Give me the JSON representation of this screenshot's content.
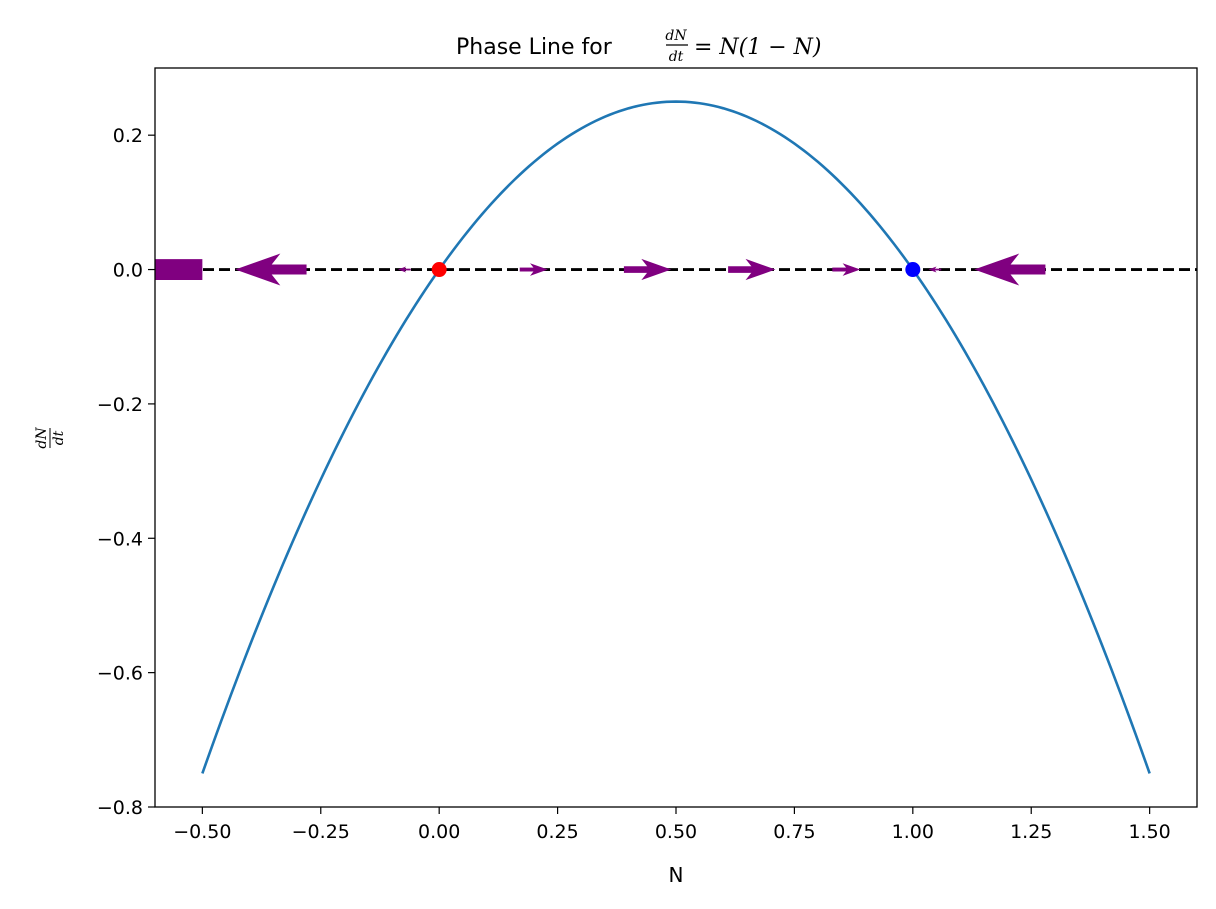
{
  "chart_data": {
    "type": "line",
    "title_text": "Phase Line for",
    "title_frac_num": "dN",
    "title_frac_den": "dt",
    "title_eq": "= N(1 − N)",
    "xlabel": "N",
    "ylabel_num": "dN",
    "ylabel_den": "dt",
    "xlim": [
      -0.6,
      1.6
    ],
    "ylim": [
      -0.8,
      0.3
    ],
    "xticks": [
      -0.5,
      -0.25,
      0.0,
      0.25,
      0.5,
      0.75,
      1.0,
      1.25,
      1.5
    ],
    "xtick_labels": [
      "−0.50",
      "−0.25",
      "0.00",
      "0.25",
      "0.50",
      "0.75",
      "1.00",
      "1.25",
      "1.50"
    ],
    "yticks": [
      -0.8,
      -0.6,
      -0.4,
      -0.2,
      0.0,
      0.2
    ],
    "ytick_labels": [
      "−0.8",
      "−0.6",
      "−0.4",
      "−0.2",
      "0.0",
      "0.2"
    ],
    "curve": {
      "x_start": -0.5,
      "x_end": 1.5,
      "color": "#1f77b4"
    },
    "zero_line": {
      "y": 0,
      "color": "#000000",
      "style": "dashed"
    },
    "equilibria": [
      {
        "x": 0.0,
        "y": 0.0,
        "color": "#ff0000",
        "stability": "unstable"
      },
      {
        "x": 1.0,
        "y": 0.0,
        "color": "#0000ff",
        "stability": "stable"
      }
    ],
    "arrows": {
      "color": "#800080",
      "x": [
        -0.5,
        -0.28,
        -0.06,
        0.17,
        0.39,
        0.61,
        0.83,
        1.06,
        1.28
      ],
      "direction": [
        -0.75,
        -0.358,
        -0.064,
        0.141,
        0.238,
        0.238,
        0.141,
        -0.064,
        -0.358
      ]
    }
  }
}
